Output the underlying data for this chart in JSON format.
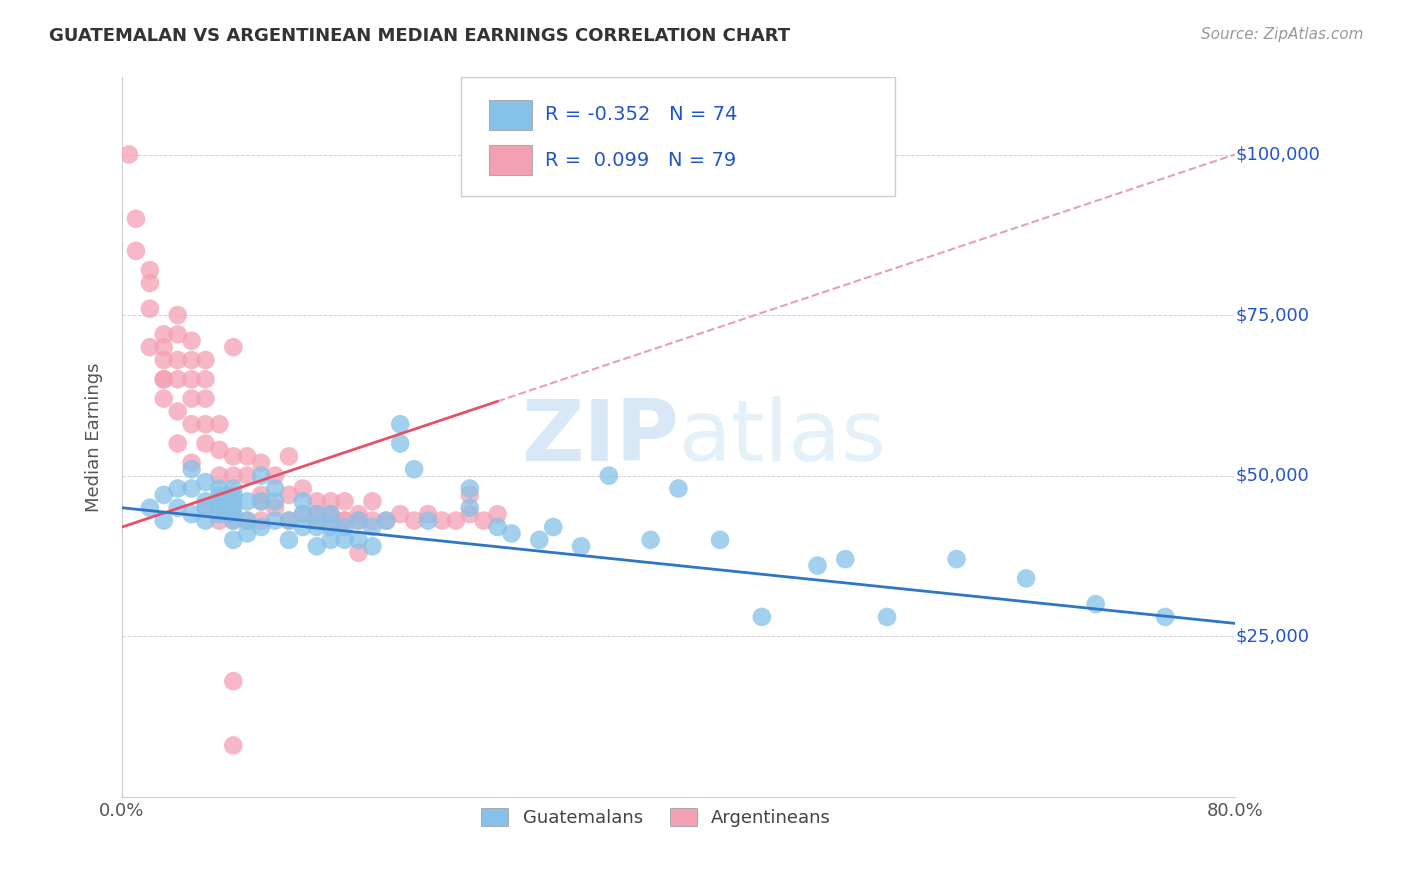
{
  "title": "GUATEMALAN VS ARGENTINEAN MEDIAN EARNINGS CORRELATION CHART",
  "source": "Source: ZipAtlas.com",
  "ylabel": "Median Earnings",
  "xlim": [
    0.0,
    0.8
  ],
  "ylim": [
    0,
    112000
  ],
  "yticks": [
    25000,
    50000,
    75000,
    100000
  ],
  "ytick_labels": [
    "$25,000",
    "$50,000",
    "$75,000",
    "$100,000"
  ],
  "xticks": [
    0.0,
    0.1,
    0.2,
    0.3,
    0.4,
    0.5,
    0.6,
    0.7,
    0.8
  ],
  "xtick_labels": [
    "0.0%",
    "",
    "",
    "",
    "",
    "",
    "",
    "",
    "80.0%"
  ],
  "blue_color": "#85C1E8",
  "pink_color": "#F4A0B4",
  "blue_line_color": "#2E75C5",
  "pink_line_color": "#E8506A",
  "pink_line_dash_color": "#E8A0B0",
  "blue_R": -0.352,
  "blue_N": 74,
  "pink_R": 0.099,
  "pink_N": 79,
  "legend_R_color": "#2255CC",
  "watermark": "ZIPatlas",
  "blue_scatter_x": [
    0.02,
    0.03,
    0.03,
    0.04,
    0.04,
    0.05,
    0.05,
    0.05,
    0.06,
    0.06,
    0.06,
    0.06,
    0.07,
    0.07,
    0.07,
    0.07,
    0.07,
    0.08,
    0.08,
    0.08,
    0.08,
    0.08,
    0.08,
    0.08,
    0.09,
    0.09,
    0.09,
    0.1,
    0.1,
    0.1,
    0.11,
    0.11,
    0.11,
    0.12,
    0.12,
    0.13,
    0.13,
    0.13,
    0.14,
    0.14,
    0.14,
    0.15,
    0.15,
    0.15,
    0.16,
    0.16,
    0.17,
    0.17,
    0.18,
    0.18,
    0.19,
    0.2,
    0.2,
    0.21,
    0.22,
    0.25,
    0.25,
    0.27,
    0.28,
    0.3,
    0.31,
    0.33,
    0.35,
    0.38,
    0.4,
    0.43,
    0.46,
    0.5,
    0.52,
    0.55,
    0.6,
    0.65,
    0.7,
    0.75
  ],
  "blue_scatter_y": [
    45000,
    43000,
    47000,
    45000,
    48000,
    44000,
    48000,
    51000,
    43000,
    45000,
    46000,
    49000,
    44000,
    45000,
    46000,
    47000,
    48000,
    40000,
    43000,
    44000,
    45000,
    46000,
    47000,
    48000,
    41000,
    43000,
    46000,
    42000,
    46000,
    50000,
    43000,
    46000,
    48000,
    40000,
    43000,
    42000,
    44000,
    46000,
    39000,
    42000,
    44000,
    40000,
    42000,
    44000,
    40000,
    42000,
    40000,
    43000,
    39000,
    42000,
    43000,
    55000,
    58000,
    51000,
    43000,
    45000,
    48000,
    42000,
    41000,
    40000,
    42000,
    39000,
    50000,
    40000,
    48000,
    40000,
    28000,
    36000,
    37000,
    28000,
    37000,
    34000,
    30000,
    28000
  ],
  "pink_scatter_x": [
    0.005,
    0.01,
    0.01,
    0.02,
    0.02,
    0.02,
    0.02,
    0.03,
    0.03,
    0.03,
    0.03,
    0.03,
    0.03,
    0.04,
    0.04,
    0.04,
    0.04,
    0.04,
    0.04,
    0.05,
    0.05,
    0.05,
    0.05,
    0.05,
    0.05,
    0.06,
    0.06,
    0.06,
    0.06,
    0.06,
    0.06,
    0.07,
    0.07,
    0.07,
    0.07,
    0.08,
    0.08,
    0.08,
    0.08,
    0.09,
    0.09,
    0.09,
    0.1,
    0.1,
    0.1,
    0.1,
    0.11,
    0.11,
    0.12,
    0.12,
    0.12,
    0.13,
    0.13,
    0.14,
    0.14,
    0.14,
    0.15,
    0.15,
    0.15,
    0.16,
    0.16,
    0.16,
    0.17,
    0.17,
    0.18,
    0.18,
    0.19,
    0.2,
    0.21,
    0.22,
    0.23,
    0.24,
    0.25,
    0.25,
    0.26,
    0.27,
    0.17,
    0.08,
    0.08
  ],
  "pink_scatter_y": [
    100000,
    90000,
    85000,
    82000,
    80000,
    76000,
    70000,
    72000,
    68000,
    65000,
    62000,
    70000,
    65000,
    60000,
    65000,
    68000,
    72000,
    75000,
    55000,
    58000,
    62000,
    65000,
    68000,
    52000,
    71000,
    55000,
    58000,
    62000,
    65000,
    68000,
    45000,
    50000,
    54000,
    58000,
    43000,
    70000,
    50000,
    53000,
    43000,
    50000,
    53000,
    43000,
    47000,
    52000,
    43000,
    46000,
    45000,
    50000,
    47000,
    53000,
    43000,
    44000,
    48000,
    44000,
    43000,
    46000,
    43000,
    46000,
    44000,
    43000,
    46000,
    43000,
    44000,
    43000,
    43000,
    46000,
    43000,
    44000,
    43000,
    44000,
    43000,
    43000,
    44000,
    47000,
    43000,
    44000,
    38000,
    18000,
    8000
  ]
}
